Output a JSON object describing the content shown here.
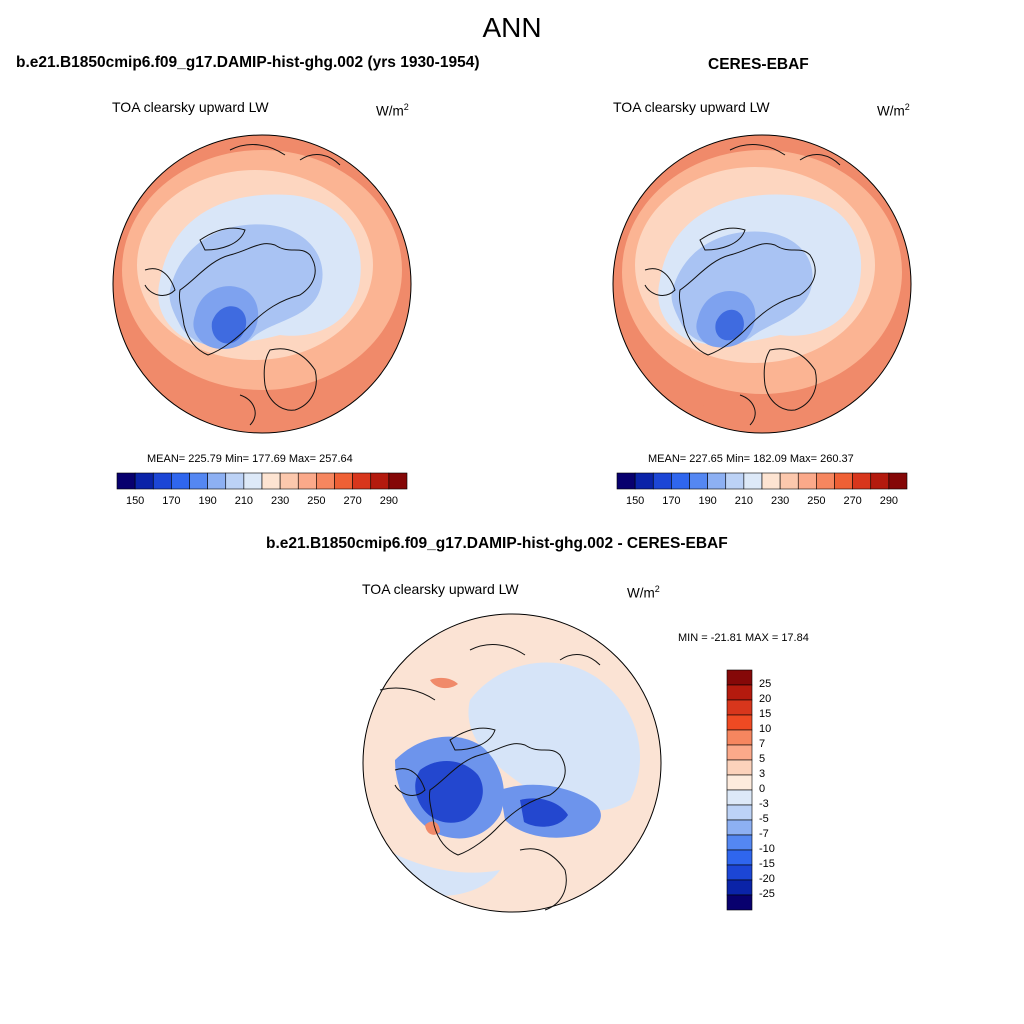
{
  "title": "ANN",
  "panel_left": {
    "case_title": "b.e21.B1850cmip6.f09_g17.DAMIP-hist-ghg.002 (yrs 1930-1954)",
    "variable": "TOA clearsky upward LW",
    "units_base": "W/m",
    "units_exp": "2",
    "stats": "MEAN= 225.79  Min= 177.69  Max= 257.64"
  },
  "panel_right": {
    "case_title": "CERES-EBAF",
    "variable": "TOA clearsky upward LW",
    "units_base": "W/m",
    "units_exp": "2",
    "stats": "MEAN= 227.65  Min= 182.09  Max= 260.37"
  },
  "panel_diff": {
    "case_title": "b.e21.B1850cmip6.f09_g17.DAMIP-hist-ghg.002 - CERES-EBAF",
    "variable": "TOA clearsky upward LW",
    "units_base": "W/m",
    "units_exp": "2",
    "stats": "MIN = -21.81 MAX =  17.84"
  },
  "abs_colorbar": {
    "labels": [
      "150",
      "170",
      "190",
      "210",
      "230",
      "250",
      "270",
      "290"
    ],
    "colors": [
      "#08006e",
      "#0a23a8",
      "#1c46d6",
      "#2f66ee",
      "#5487f2",
      "#8db0f3",
      "#bcd2f6",
      "#dde9f8",
      "#fde4d2",
      "#fcc8ad",
      "#fba98a",
      "#f6865f",
      "#ef6035",
      "#d8361c",
      "#b41a0e",
      "#850808"
    ]
  },
  "diff_colorbar": {
    "labels": [
      "25",
      "20",
      "15",
      "10",
      "7",
      "5",
      "3",
      "0",
      "-3",
      "-5",
      "-7",
      "-10",
      "-15",
      "-20",
      "-25"
    ],
    "colors": [
      "#850808",
      "#b41a0e",
      "#d8361c",
      "#ef4a23",
      "#f6865f",
      "#fba98a",
      "#fcd2bb",
      "#fdebdd",
      "#dde9f8",
      "#bcd2f6",
      "#8db0f3",
      "#5487f2",
      "#2f66ee",
      "#1c46d6",
      "#0a23a8",
      "#08006e"
    ]
  },
  "map_colors": {
    "outer": "#f08a6a",
    "mid": "#fbb493",
    "peach": "#fdd6c0",
    "light_blue": "#d9e6f8",
    "blue": "#a9c3f3",
    "blue2": "#7ea2ef",
    "dark_blue": "#3f6be0",
    "diff_base": "#fbe3d4",
    "diff_blue_light": "#d6e4f8",
    "diff_blue": "#6d94ec",
    "diff_blue_dark": "#2347cf"
  }
}
